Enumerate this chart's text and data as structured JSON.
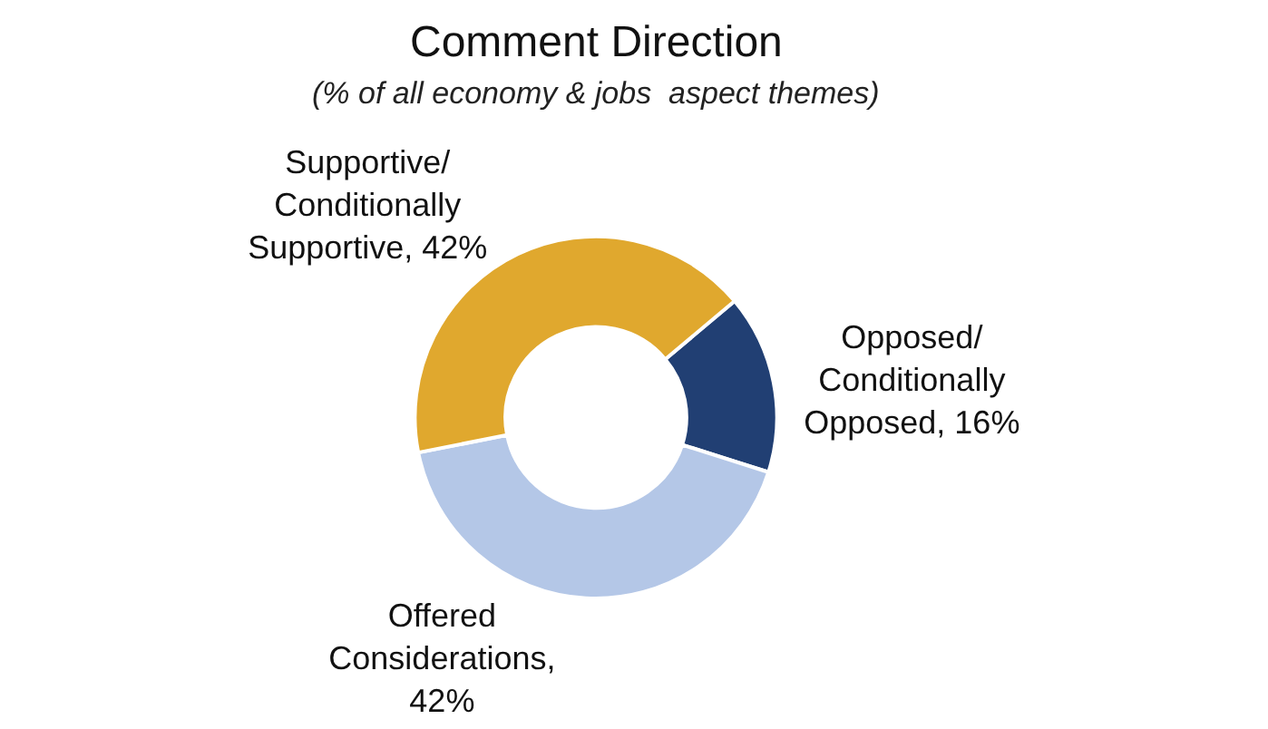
{
  "chart_data": {
    "type": "donut",
    "title": "Comment Direction",
    "subtitle": "(% of all economy & jobs  aspect themes)",
    "categories": [
      "Opposed/ Conditionally Opposed, 16%",
      "Offered Considerations, 42%",
      "Supportive/ Conditionally Supportive, 42%"
    ],
    "values": [
      16,
      42,
      42
    ],
    "colors": [
      "#213f73",
      "#b4c7e7",
      "#e0a82e"
    ],
    "legend": false
  }
}
